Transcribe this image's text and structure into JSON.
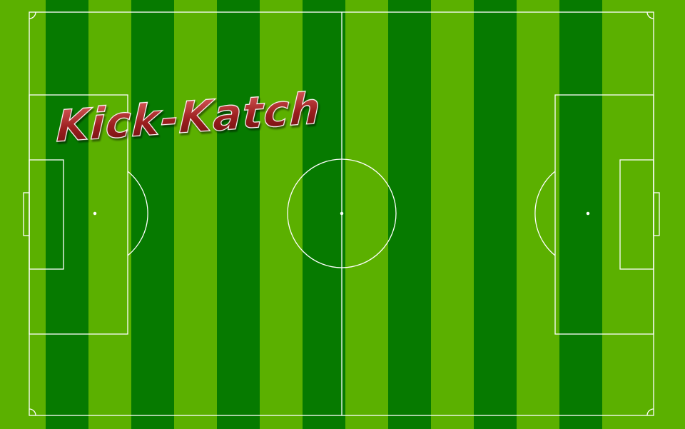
{
  "game": {
    "title": "Kick-Katch",
    "colors": {
      "grass_light": "#5bb000",
      "grass_dark": "#067a00",
      "line": "#ffffff",
      "title_fill": "#9a1e1e",
      "title_outline": "#ffffff"
    }
  }
}
